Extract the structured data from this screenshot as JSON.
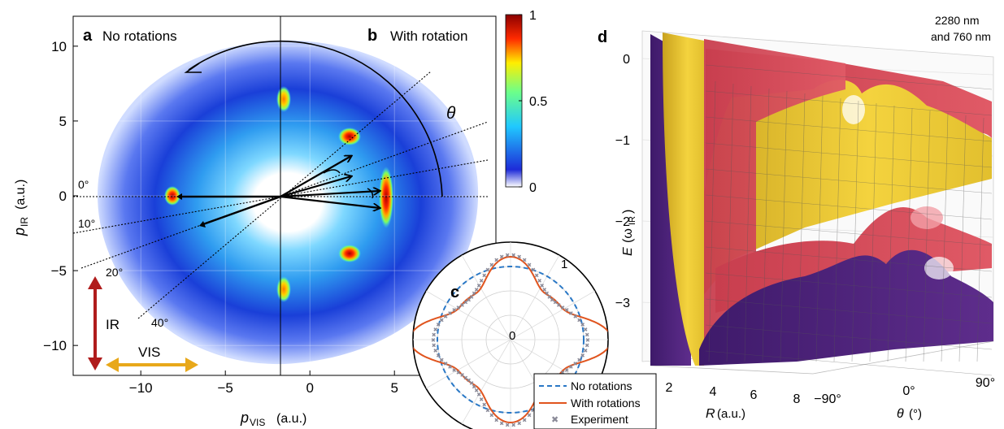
{
  "colors": {
    "ir": "#b01c1c",
    "vis": "#e8a81a",
    "no_rot": "#2a78c6",
    "with_rot": "#e0541e",
    "expt": "#8a8a98",
    "surf_purple": "#5a2a86",
    "surf_red": "#d64a5a",
    "surf_yellow": "#f2cf3e"
  },
  "chart_data": [
    {
      "panel": "a/b",
      "type": "heatmap",
      "panel_labels": {
        "a": "a",
        "a_title": "No rotations",
        "b": "b",
        "b_title": "With rotation"
      },
      "xlabel": "p",
      "xlabel_sub": "VIS",
      "xlabel_unit": "(a.u.)",
      "ylabel": "p",
      "ylabel_sub": "IR",
      "ylabel_unit": "(a.u.)",
      "xlim": [
        -14,
        11
      ],
      "ylim": [
        -12,
        12
      ],
      "xticks": [
        -10,
        -5,
        0,
        5
      ],
      "yticks": [
        10,
        5,
        0,
        -5,
        -10
      ],
      "xtick_labels": [
        "−10",
        "−5",
        "0",
        "5"
      ],
      "ytick_labels": [
        "10",
        "5",
        "0",
        "−5",
        "−10"
      ],
      "grid": true,
      "colorbar": {
        "min": 0,
        "max": 1,
        "ticks": [
          1,
          0.5,
          0
        ],
        "tick_labels": [
          "1",
          "0.5",
          "0"
        ],
        "colormap": "white-blue-cyan-green-yellow-red"
      },
      "angle_labels": [
        "0°",
        "10°",
        "20°",
        "40°"
      ],
      "angle_values": [
        0,
        10,
        20,
        40
      ],
      "theta_label": "θ",
      "arrows": {
        "ir_label": "IR",
        "vis_label": "VIS"
      }
    },
    {
      "panel": "c",
      "type": "polar",
      "panel_label": "c",
      "r_ticks": [
        0,
        1
      ],
      "r_tick_labels": [
        "0",
        "1"
      ],
      "series": [
        {
          "name": "No rotations",
          "style": "dashed"
        },
        {
          "name": "With rotations",
          "style": "solid"
        },
        {
          "name": "Experiment",
          "style": "markers"
        }
      ]
    },
    {
      "panel": "d",
      "type": "surface",
      "panel_label": "d",
      "annotation": [
        "2280 nm",
        "and 760 nm"
      ],
      "zlabel": "E",
      "zlabel_sub": "IR",
      "zlabel_unit": "(ω",
      "zticks": [
        0,
        -1,
        -2,
        -3
      ],
      "ztick_labels": [
        "0",
        "−1",
        "−2",
        "−3"
      ],
      "xlabel": "R",
      "xlabel_unit": "(a.u.)",
      "xticks": [
        2,
        4,
        6,
        8
      ],
      "xtick_labels": [
        "2",
        "4",
        "6",
        "8"
      ],
      "ylabel": "θ",
      "ylabel_unit": "(°)",
      "yticks": [
        -90,
        0,
        90
      ],
      "ytick_labels": [
        "−90°",
        "0°",
        "90°"
      ]
    }
  ]
}
